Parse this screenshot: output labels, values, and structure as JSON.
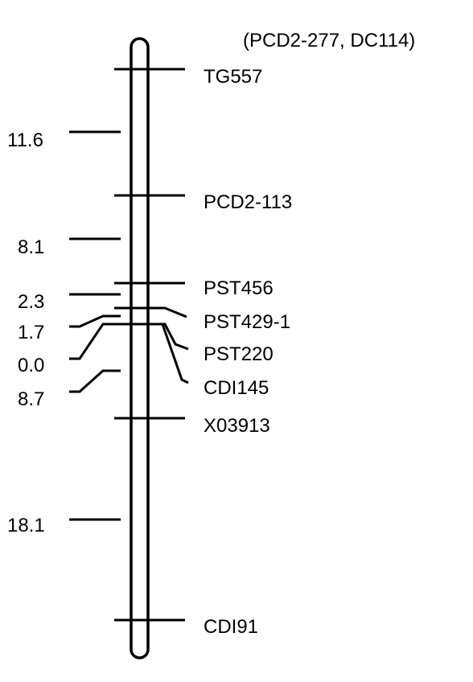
{
  "header_note": "(PCD2-277, DC114)",
  "markers": [
    "TG557",
    "PCD2-113",
    "PST456",
    "PST429-1",
    "PST220",
    "CDI145",
    "X03913",
    "CDI91"
  ],
  "distances": [
    "11.6",
    "8.1",
    "2.3",
    "1.7",
    "0.0",
    "8.7",
    "18.1"
  ]
}
